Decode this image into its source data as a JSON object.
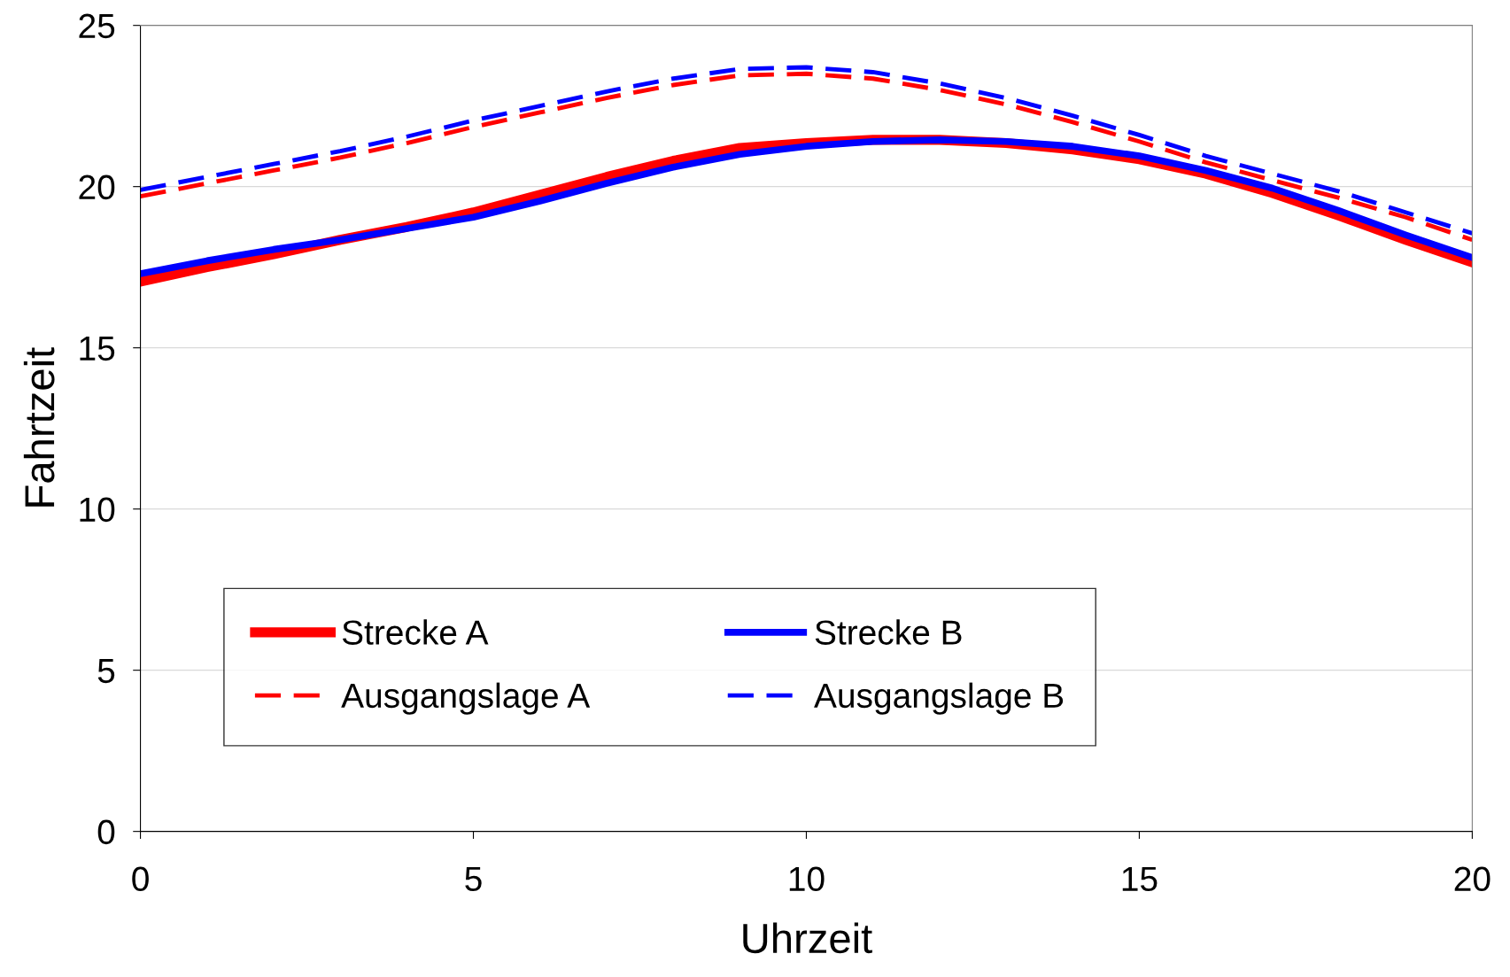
{
  "chart_data": {
    "type": "line",
    "xlabel": "Uhrzeit",
    "ylabel": "Fahrtzeit",
    "x": [
      0,
      1,
      2,
      3,
      4,
      5,
      6,
      7,
      8,
      9,
      10,
      11,
      12,
      13,
      14,
      15,
      16,
      17,
      18,
      19,
      20
    ],
    "series": [
      {
        "name": "Strecke A",
        "color": "#ff0000",
        "line_style": "solid",
        "values": [
          17.05,
          17.5,
          17.9,
          18.35,
          18.75,
          19.2,
          19.75,
          20.3,
          20.8,
          21.2,
          21.35,
          21.45,
          21.45,
          21.35,
          21.15,
          20.85,
          20.4,
          19.8,
          19.1,
          18.35,
          17.65
        ]
      },
      {
        "name": "Strecke B",
        "color": "#0000ff",
        "line_style": "solid",
        "values": [
          17.3,
          17.7,
          18.05,
          18.35,
          18.7,
          19.05,
          19.55,
          20.1,
          20.6,
          21.0,
          21.25,
          21.4,
          21.45,
          21.4,
          21.25,
          20.95,
          20.5,
          19.95,
          19.25,
          18.5,
          17.8
        ]
      },
      {
        "name": "Ausgangslage A",
        "color": "#ff0000",
        "line_style": "dashed",
        "values": [
          19.7,
          20.1,
          20.5,
          20.9,
          21.35,
          21.85,
          22.3,
          22.75,
          23.15,
          23.45,
          23.5,
          23.35,
          23.0,
          22.55,
          22.0,
          21.4,
          20.75,
          20.2,
          19.65,
          19.05,
          18.35
        ]
      },
      {
        "name": "Ausgangslage B",
        "color": "#0000ff",
        "line_style": "dashed",
        "values": [
          19.9,
          20.3,
          20.7,
          21.1,
          21.55,
          22.05,
          22.5,
          22.95,
          23.35,
          23.65,
          23.7,
          23.55,
          23.2,
          22.75,
          22.2,
          21.6,
          20.95,
          20.4,
          19.85,
          19.2,
          18.55
        ]
      }
    ],
    "xlim": [
      0,
      20
    ],
    "xticks": [
      0,
      5,
      10,
      15,
      20
    ],
    "ylim": [
      0,
      25
    ],
    "yticks": [
      0,
      5,
      10,
      15,
      20,
      25
    ],
    "grid": "y",
    "legend": "bottom",
    "marker": "none"
  }
}
